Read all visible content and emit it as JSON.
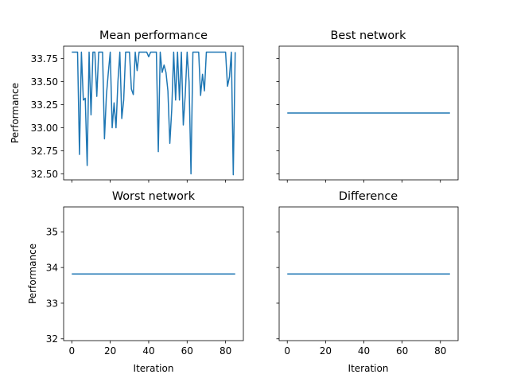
{
  "chart_data": [
    {
      "id": "mean",
      "type": "line",
      "title": "Mean performance",
      "xlabel": "",
      "ylabel": "Performance",
      "xlim": [
        -4.25,
        89.25
      ],
      "ylim": [
        32.435,
        33.885
      ],
      "xticks": [
        0,
        20,
        40,
        60,
        80
      ],
      "xtick_labels": [],
      "yticks": [
        32.5,
        32.75,
        33.0,
        33.25,
        33.5,
        33.75
      ],
      "ytick_labels": [
        "32.50",
        "32.75",
        "33.00",
        "33.25",
        "33.50",
        "33.75"
      ],
      "grid": false,
      "series": [
        {
          "name": "mean",
          "color": "#1f77b4",
          "x": [
            0,
            1,
            2,
            3,
            4,
            5,
            6,
            7,
            8,
            9,
            10,
            11,
            12,
            13,
            14,
            15,
            16,
            17,
            18,
            19,
            20,
            21,
            22,
            23,
            24,
            25,
            26,
            27,
            28,
            29,
            30,
            31,
            32,
            33,
            34,
            35,
            36,
            37,
            38,
            39,
            40,
            41,
            42,
            43,
            44,
            45,
            46,
            47,
            48,
            49,
            50,
            51,
            52,
            53,
            54,
            55,
            56,
            57,
            58,
            59,
            60,
            61,
            62,
            63,
            64,
            65,
            66,
            67,
            68,
            69,
            70,
            71,
            72,
            73,
            74,
            75,
            76,
            77,
            78,
            79,
            80,
            81,
            82,
            83,
            84,
            85
          ],
          "values": [
            33.82,
            33.82,
            33.82,
            33.82,
            32.71,
            33.82,
            33.3,
            33.32,
            32.59,
            33.82,
            33.14,
            33.82,
            33.82,
            33.34,
            33.82,
            33.82,
            33.82,
            32.88,
            33.35,
            33.6,
            33.82,
            33.0,
            33.27,
            33.0,
            33.5,
            33.82,
            33.1,
            33.3,
            33.82,
            33.82,
            33.82,
            33.42,
            33.36,
            33.82,
            33.62,
            33.82,
            33.82,
            33.82,
            33.82,
            33.82,
            33.77,
            33.82,
            33.82,
            33.82,
            33.82,
            32.74,
            33.82,
            33.6,
            33.68,
            33.6,
            33.4,
            32.83,
            33.2,
            33.82,
            33.3,
            33.82,
            33.3,
            33.82,
            33.03,
            33.35,
            33.82,
            33.5,
            32.5,
            33.82,
            33.82,
            33.82,
            33.82,
            33.35,
            33.58,
            33.4,
            33.82,
            33.82,
            33.82,
            33.82,
            33.82,
            33.82,
            33.82,
            33.82,
            33.82,
            33.82,
            33.82,
            33.45,
            33.55,
            33.82,
            32.49,
            33.82
          ]
        }
      ]
    },
    {
      "id": "best",
      "type": "line",
      "title": "Best network",
      "xlabel": "",
      "ylabel": "",
      "xlim": [
        -4.25,
        89.25
      ],
      "ylim": [
        32.435,
        33.885
      ],
      "xticks": [
        0,
        20,
        40,
        60,
        80
      ],
      "xtick_labels": [],
      "yticks": [
        32.5,
        32.75,
        33.0,
        33.25,
        33.5,
        33.75
      ],
      "ytick_labels": [],
      "grid": false,
      "series": [
        {
          "name": "best",
          "color": "#1f77b4",
          "x": [
            0,
            85
          ],
          "values": [
            33.16,
            33.16
          ]
        }
      ]
    },
    {
      "id": "worst",
      "type": "line",
      "title": "Worst network",
      "xlabel": "Iteration",
      "ylabel": "Performance",
      "xlim": [
        -4.25,
        89.25
      ],
      "ylim": [
        31.95,
        35.7
      ],
      "xticks": [
        0,
        20,
        40,
        60,
        80
      ],
      "xtick_labels": [
        "0",
        "20",
        "40",
        "60",
        "80"
      ],
      "yticks": [
        32,
        33,
        34,
        35
      ],
      "ytick_labels": [
        "32",
        "33",
        "34",
        "35"
      ],
      "grid": false,
      "series": [
        {
          "name": "worst",
          "color": "#1f77b4",
          "x": [
            0,
            85
          ],
          "values": [
            33.82,
            33.82
          ]
        }
      ]
    },
    {
      "id": "difference",
      "type": "line",
      "title": "Difference",
      "xlabel": "Iteration",
      "ylabel": "",
      "xlim": [
        -4.25,
        89.25
      ],
      "ylim": [
        31.95,
        35.7
      ],
      "xticks": [
        0,
        20,
        40,
        60,
        80
      ],
      "xtick_labels": [
        "0",
        "20",
        "40",
        "60",
        "80"
      ],
      "yticks": [
        32,
        33,
        34,
        35
      ],
      "ytick_labels": [],
      "grid": false,
      "series": [
        {
          "name": "difference",
          "color": "#1f77b4",
          "x": [
            0,
            85
          ],
          "values": [
            33.82,
            33.82
          ]
        }
      ]
    }
  ]
}
